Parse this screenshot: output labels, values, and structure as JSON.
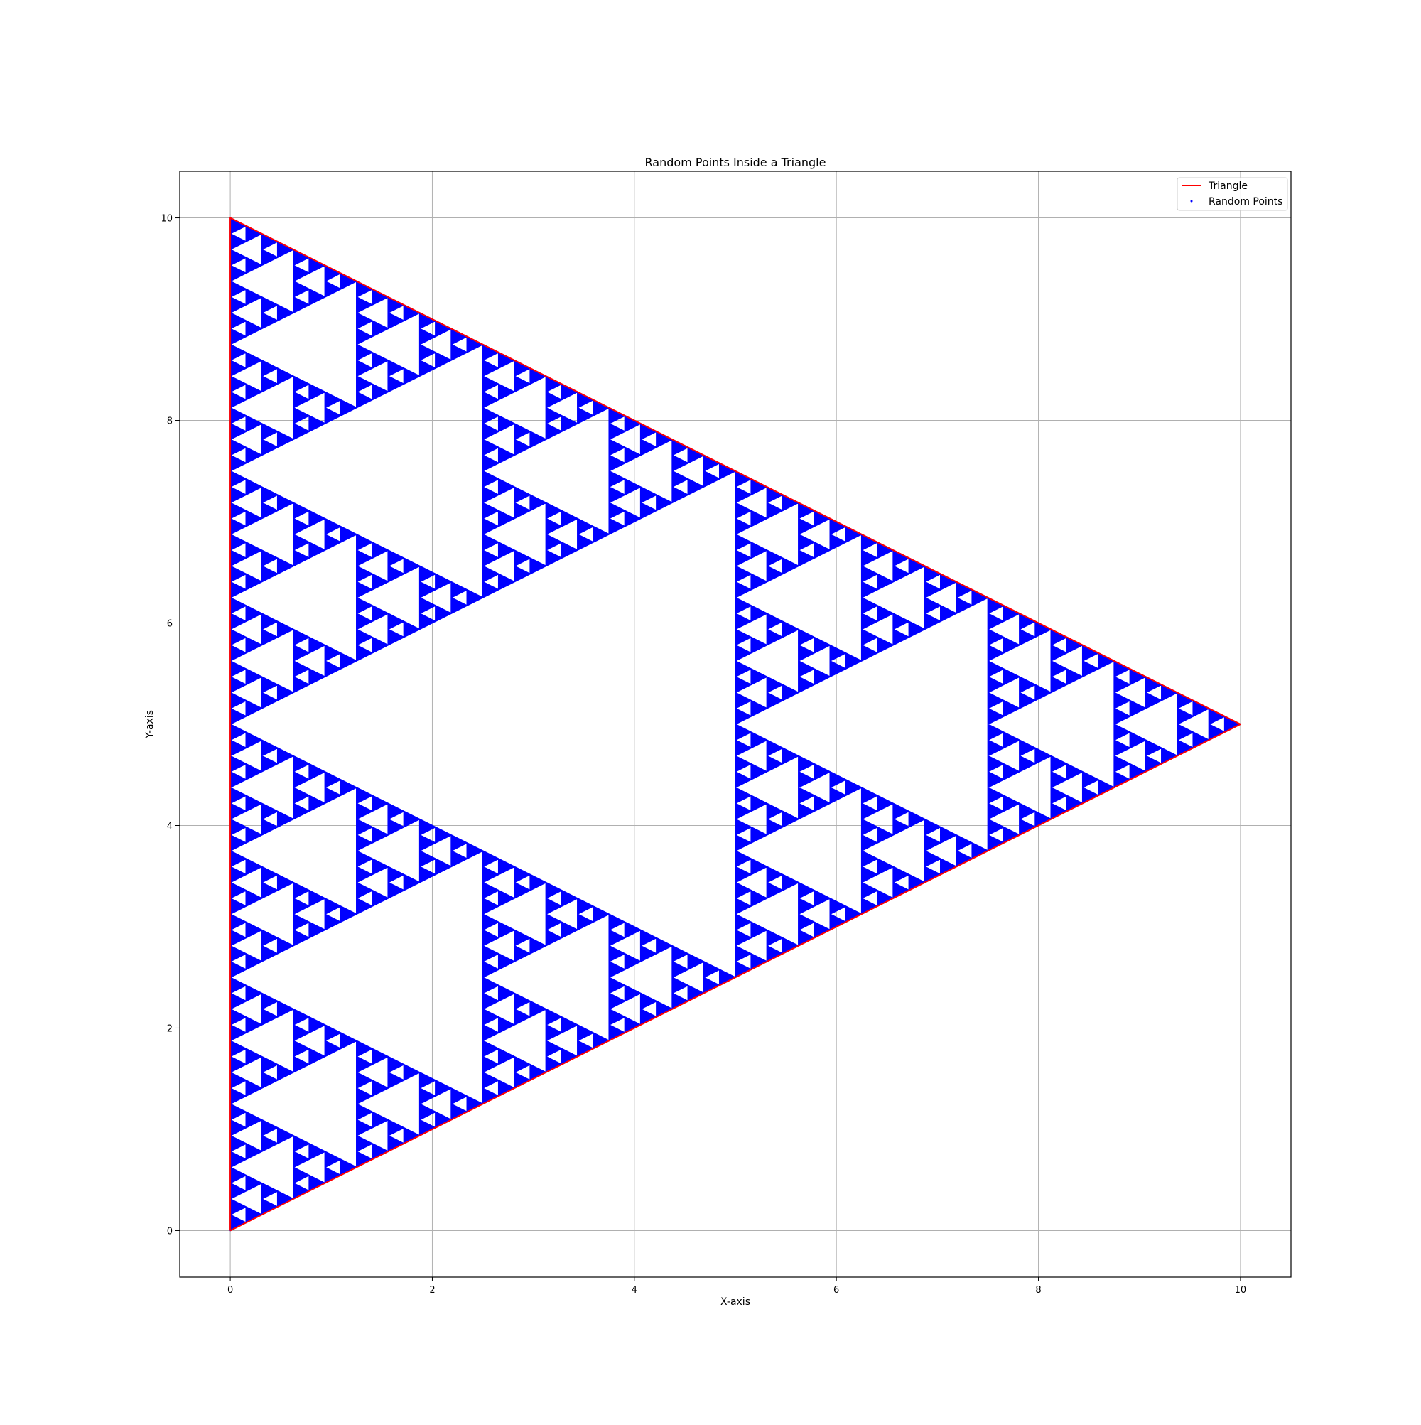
{
  "chart_data": {
    "type": "scatter",
    "title": "Random Points Inside a Triangle",
    "xlabel": "X-axis",
    "ylabel": "Y-axis",
    "xlim": [
      -0.5,
      10.5
    ],
    "ylim": [
      -0.46,
      10.46
    ],
    "xticks": [
      "0",
      "2",
      "4",
      "6",
      "8",
      "10"
    ],
    "yticks": [
      "0",
      "2",
      "4",
      "6",
      "8",
      "10"
    ],
    "grid": true,
    "legend_position": "top-right",
    "series": [
      {
        "name": "Triangle",
        "kind": "line",
        "color": "#ff0000",
        "vertices": [
          [
            0,
            0
          ],
          [
            10,
            5
          ],
          [
            0,
            10
          ],
          [
            0,
            0
          ]
        ]
      },
      {
        "name": "Random Points",
        "kind": "scatter",
        "color": "#0000ff",
        "pattern": "sierpinski",
        "depth": 6,
        "vertices": [
          [
            0,
            0
          ],
          [
            10,
            5
          ],
          [
            0,
            10
          ]
        ]
      }
    ]
  }
}
